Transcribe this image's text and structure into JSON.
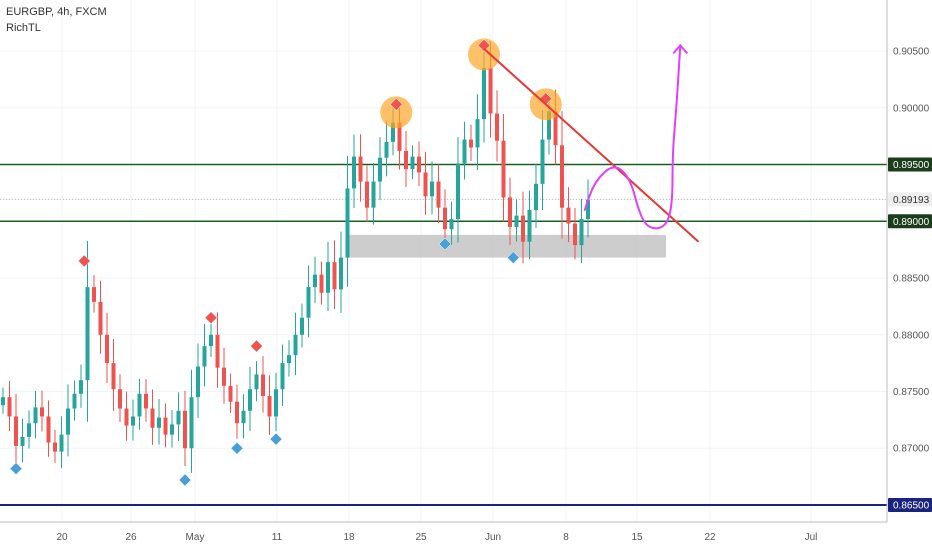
{
  "header": {
    "symbol_line": "EURGBP, 4h, FXCM",
    "indicator_name": "RichTL"
  },
  "colors": {
    "up": "#26a69a",
    "down": "#ef5350",
    "resistance_line": "#1b5e20",
    "current_price": "#bdbdbd",
    "bottom_line": "#1a237e",
    "trendline": "#e53935",
    "projection": "#e040fb",
    "support_zone": "#c8c8c8",
    "pivot_high": "#ef5350",
    "pivot_low": "#4a9fd8",
    "highlight": "#ffa726"
  },
  "chart_data": {
    "type": "candlestick",
    "y_range": [
      0.8635,
      0.9095
    ],
    "x_labels": [
      "20",
      "26",
      "May",
      "11",
      "18",
      "25",
      "Jun",
      "8",
      "15",
      "22",
      "Jul"
    ],
    "y_ticks": [
      "0.90500",
      "0.90000",
      "0.89500",
      "0.89193",
      "0.89000",
      "0.88500",
      "0.88000",
      "0.87500",
      "0.87000",
      "0.86500"
    ],
    "price_tags": [
      {
        "label": "0.89500",
        "value": 0.895,
        "style": "resistance"
      },
      {
        "label": "0.89193",
        "value": 0.89193,
        "style": "current"
      },
      {
        "label": "0.89000",
        "value": 0.89,
        "style": "resistance"
      },
      {
        "label": "0.86500",
        "value": 0.865,
        "style": "bottom"
      }
    ],
    "horizontal_lines": [
      {
        "value": 0.895,
        "style": "resistance"
      },
      {
        "value": 0.89,
        "style": "resistance"
      },
      {
        "value": 0.89193,
        "style": "current"
      },
      {
        "value": 0.865,
        "style": "bottom"
      }
    ],
    "support_zone": {
      "x_start": 53,
      "x_end": 102,
      "y_top": 0.8888,
      "y_bottom": 0.8868
    },
    "trendline": {
      "x1": 74,
      "y1": 0.9052,
      "x2": 107,
      "y2": 0.8882
    },
    "projection": [
      [
        89.5,
        0.891
      ],
      [
        91,
        0.8935
      ],
      [
        94,
        0.8951
      ],
      [
        96.5,
        0.8938
      ],
      [
        98,
        0.8905
      ],
      [
        99.5,
        0.8893
      ],
      [
        102,
        0.8895
      ],
      [
        103,
        0.8915
      ],
      [
        103,
        0.896
      ],
      [
        103.6,
        0.9
      ],
      [
        104.2,
        0.9055
      ]
    ],
    "highlighted_peaks": [
      {
        "x": 60.5,
        "y": 0.8996
      },
      {
        "x": 74,
        "y": 0.9047
      },
      {
        "x": 83.5,
        "y": 0.9003
      }
    ],
    "pivot_highs": [
      {
        "x": 12.5,
        "y": 0.8865
      },
      {
        "x": 32,
        "y": 0.8815
      },
      {
        "x": 39,
        "y": 0.879
      },
      {
        "x": 60.5,
        "y": 0.9003
      },
      {
        "x": 74,
        "y": 0.9055
      },
      {
        "x": 83.5,
        "y": 0.9008
      }
    ],
    "pivot_lows": [
      {
        "x": 2,
        "y": 0.8682
      },
      {
        "x": 28,
        "y": 0.8672
      },
      {
        "x": 36,
        "y": 0.87
      },
      {
        "x": 42,
        "y": 0.8708
      },
      {
        "x": 68,
        "y": 0.888
      },
      {
        "x": 78.5,
        "y": 0.8868
      }
    ],
    "closes": [
      0.8745,
      0.8728,
      0.8702,
      0.871,
      0.8722,
      0.8736,
      0.8728,
      0.8705,
      0.8697,
      0.8712,
      0.8735,
      0.8748,
      0.876,
      0.8842,
      0.8829,
      0.88,
      0.8775,
      0.8752,
      0.8735,
      0.872,
      0.8728,
      0.8748,
      0.8735,
      0.8718,
      0.8727,
      0.8712,
      0.8721,
      0.8733,
      0.87,
      0.8745,
      0.8772,
      0.879,
      0.88,
      0.8771,
      0.8755,
      0.8741,
      0.8722,
      0.8733,
      0.8752,
      0.8765,
      0.8746,
      0.8728,
      0.8752,
      0.8775,
      0.8782,
      0.88,
      0.8815,
      0.8842,
      0.8853,
      0.8837,
      0.8864,
      0.884,
      0.8868,
      0.8929,
      0.8957,
      0.8935,
      0.8912,
      0.8935,
      0.8956,
      0.897,
      0.8987,
      0.8962,
      0.8946,
      0.8957,
      0.8943,
      0.8922,
      0.8935,
      0.8912,
      0.8893,
      0.8902,
      0.8951,
      0.8972,
      0.8965,
      0.899,
      0.9035,
      0.8995,
      0.8971,
      0.8921,
      0.8895,
      0.8905,
      0.8882,
      0.891,
      0.8933,
      0.8972,
      0.8997,
      0.8967,
      0.8912,
      0.8898,
      0.8879,
      0.8902,
      0.8919
    ]
  }
}
